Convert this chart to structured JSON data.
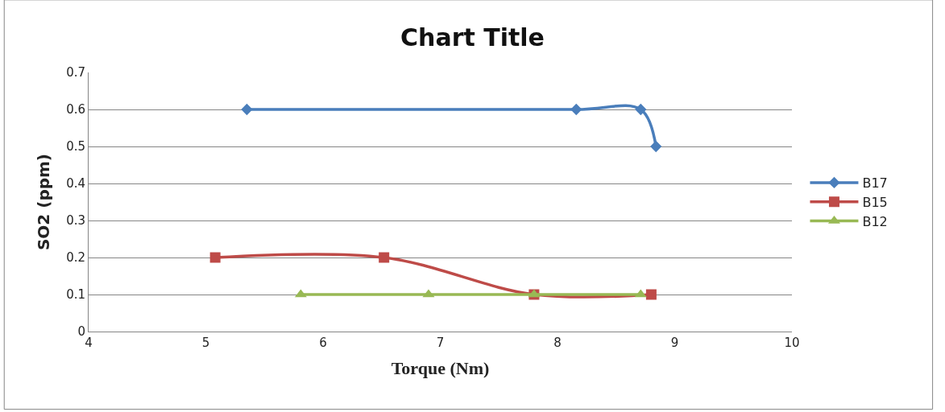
{
  "chart_data": {
    "type": "line",
    "title": "Chart Title",
    "xlabel": "Torque (Nm)",
    "ylabel": "SO2 (ppm)",
    "xlim": [
      4,
      10
    ],
    "xticks": [
      4,
      5,
      6,
      7,
      8,
      9,
      10
    ],
    "ylim": [
      0,
      0.7
    ],
    "yticks": [
      0,
      0.1,
      0.2,
      0.3,
      0.4,
      0.5,
      0.6,
      0.7
    ],
    "grid": "y",
    "legend": "right",
    "series": [
      {
        "name": "B17",
        "color": "#4a7ebb",
        "marker": "diamond",
        "x": [
          5.35,
          8.16,
          8.71,
          8.84
        ],
        "values": [
          0.6,
          0.6,
          0.6,
          0.5
        ]
      },
      {
        "name": "B15",
        "color": "#be4b48",
        "marker": "square",
        "x": [
          5.08,
          6.52,
          7.8,
          8.8
        ],
        "values": [
          0.2,
          0.2,
          0.1,
          0.1
        ]
      },
      {
        "name": "B12",
        "color": "#98b954",
        "marker": "triangle",
        "x": [
          5.81,
          6.9,
          7.8,
          8.71
        ],
        "values": [
          0.1,
          0.1,
          0.1,
          0.1
        ]
      }
    ]
  }
}
